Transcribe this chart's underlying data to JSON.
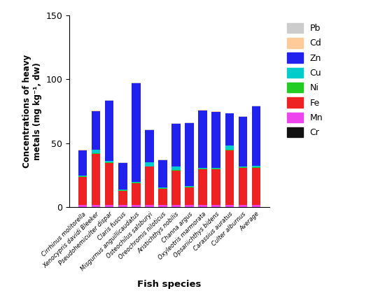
{
  "species": [
    "Cirrhinus molitorella",
    "Xenocypris davidi Bleeker",
    "Pseudohemiculter dispar",
    "Claris fuscus",
    "Misgurnus anguillicaudatus",
    "Osteochilus salsburyi",
    "Oreochromis niloticus",
    "Aristichthys nobilis",
    "Channa argus",
    "Oxyleotris marmorata",
    "Opsariichthys bidens",
    "Carassius auratus",
    "Culter alburnus",
    "Average"
  ],
  "metals": [
    "Cr",
    "Mn",
    "Fe",
    "Ni",
    "Cu",
    "Zn",
    "Cd",
    "Pb"
  ],
  "colors": {
    "Cr": "#111111",
    "Mn": "#ee44ee",
    "Fe": "#ee2222",
    "Ni": "#22cc22",
    "Cu": "#00cccc",
    "Zn": "#2222ee",
    "Cd": "#ffcc99",
    "Pb": "#cccccc"
  },
  "data": {
    "Cr": [
      0.2,
      0.2,
      0.2,
      0.2,
      0.2,
      0.2,
      0.2,
      0.2,
      0.2,
      0.2,
      0.2,
      0.2,
      0.2,
      0.2
    ],
    "Mn": [
      1.5,
      1.5,
      1.5,
      1.5,
      1.5,
      1.5,
      1.5,
      1.5,
      1.5,
      1.5,
      1.5,
      1.5,
      1.5,
      1.5
    ],
    "Fe": [
      22,
      40,
      33,
      11,
      17,
      30,
      13,
      27,
      14,
      28,
      28,
      43,
      29,
      29
    ],
    "Ni": [
      0.5,
      0.5,
      0.5,
      0.5,
      0.5,
      0.5,
      0.5,
      0.5,
      0.5,
      0.5,
      0.5,
      0.5,
      0.5,
      0.5
    ],
    "Cu": [
      0.5,
      3.0,
      1.0,
      0.5,
      0.5,
      3.0,
      0.5,
      3.0,
      0.5,
      0.5,
      0.5,
      3.0,
      0.5,
      1.5
    ],
    "Zn": [
      20,
      30,
      47,
      21,
      77,
      25,
      21,
      33,
      49,
      45,
      44,
      25,
      39,
      46
    ],
    "Cd": [
      0.2,
      0.2,
      0.2,
      0.2,
      0.2,
      0.2,
      0.2,
      0.2,
      0.2,
      0.2,
      0.2,
      0.2,
      0.2,
      0.2
    ],
    "Pb": [
      0.3,
      0.3,
      0.3,
      0.3,
      0.3,
      0.3,
      0.3,
      0.3,
      0.3,
      0.3,
      0.3,
      0.3,
      0.3,
      0.3
    ]
  },
  "ylabel": "Concentrations of heavy\nmetals (mg kg⁻¹, dw)",
  "xlabel": "Fish species",
  "ylim": [
    0,
    150
  ],
  "yticks": [
    0,
    50,
    100,
    150
  ],
  "legend_metals_order": [
    "Pb",
    "Cd",
    "Zn",
    "Cu",
    "Ni",
    "Fe",
    "Mn",
    "Cr"
  ]
}
